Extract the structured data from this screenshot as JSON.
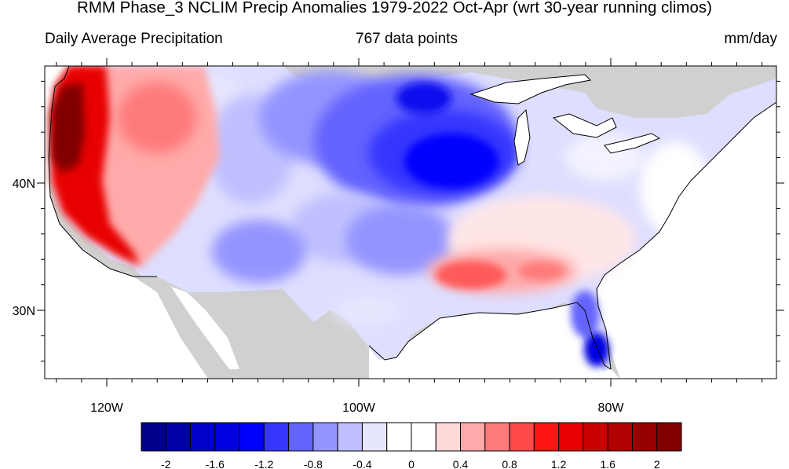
{
  "title": "RMM Phase_3 NCLIM Precip Anomalies 1979-2022 Oct-Apr (wrt 30-year running climos)",
  "left_subtitle": "Daily Average Precipitation",
  "center_subtitle": "767 data points",
  "right_subtitle": "mm/day",
  "lat_labels": [
    "40N",
    "30N"
  ],
  "lon_labels": [
    "120W",
    "100W",
    "80W"
  ],
  "colorbar": {
    "labels": [
      "-2",
      "-1.6",
      "-1.2",
      "-0.8",
      "-0.4",
      "0",
      "0.4",
      "0.8",
      "1.2",
      "1.6",
      "2"
    ],
    "colors": [
      "#00008b",
      "#0000a8",
      "#0000c8",
      "#0000e0",
      "#0000ff",
      "#3636ff",
      "#6464ff",
      "#9494ff",
      "#c0c0ff",
      "#e6e6ff",
      "#ffffff",
      "#ffffff",
      "#ffd8d8",
      "#ffaaaa",
      "#ff7a7a",
      "#ff4848",
      "#ff1414",
      "#e80000",
      "#cc0000",
      "#b00000",
      "#960000",
      "#800000"
    ]
  },
  "colors": {
    "land_missing": "#d0d0d0",
    "ocean": "#ffffff"
  }
}
